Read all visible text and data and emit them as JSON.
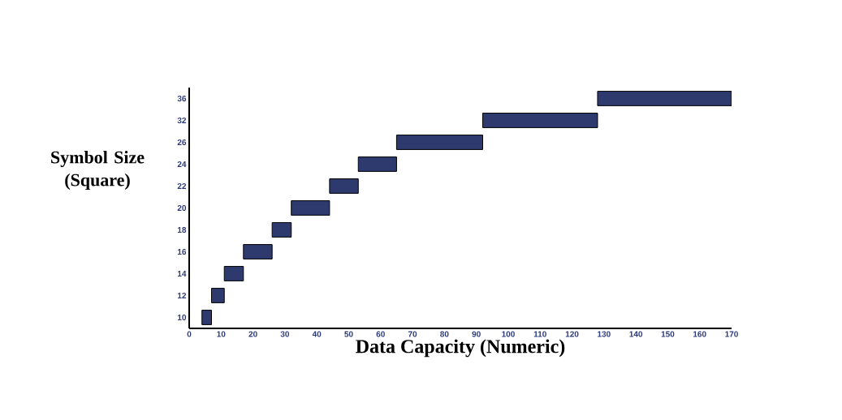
{
  "chart_data": {
    "type": "bar",
    "orientation": "horizontal",
    "xlabel": "Data Capacity (Numeric)",
    "ylabel": "Symbol Size (Square)",
    "categories": [
      "36",
      "32",
      "26",
      "24",
      "22",
      "20",
      "18",
      "16",
      "14",
      "12",
      "10"
    ],
    "base": [
      128,
      92,
      65,
      53,
      44,
      32,
      26,
      17,
      11,
      7,
      4
    ],
    "values": [
      42,
      36,
      27,
      12,
      9,
      12,
      6,
      9,
      6,
      4,
      3
    ],
    "color": "#2e3a6e",
    "xlim": [
      0,
      170
    ],
    "xticks": [
      0,
      10,
      20,
      30,
      40,
      50,
      60,
      70,
      80,
      90,
      100,
      110,
      120,
      130,
      140,
      150,
      160,
      170
    ],
    "grid": false
  }
}
